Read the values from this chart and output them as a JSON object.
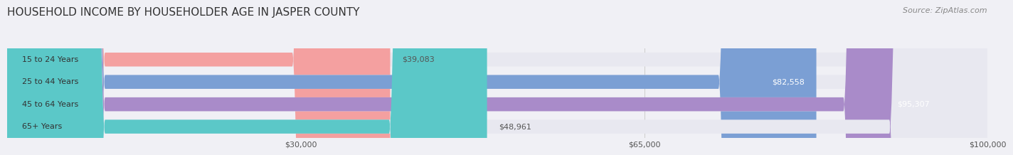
{
  "title": "HOUSEHOLD INCOME BY HOUSEHOLDER AGE IN JASPER COUNTY",
  "source": "Source: ZipAtlas.com",
  "categories": [
    "15 to 24 Years",
    "25 to 44 Years",
    "45 to 64 Years",
    "65+ Years"
  ],
  "values": [
    39083,
    82558,
    95307,
    48961
  ],
  "bar_colors": [
    "#f4a0a0",
    "#7b9fd4",
    "#a98bc9",
    "#5bc8c8"
  ],
  "label_colors": [
    "#555555",
    "#ffffff",
    "#ffffff",
    "#555555"
  ],
  "x_max": 100000,
  "x_ticks": [
    30000,
    65000,
    100000
  ],
  "x_tick_labels": [
    "$30,000",
    "$65,000",
    "$100,000"
  ],
  "background_color": "#f0f0f5",
  "bar_background": "#e8e8f0",
  "bar_height": 0.62,
  "title_fontsize": 11,
  "source_fontsize": 8,
  "label_fontsize": 8,
  "cat_fontsize": 8
}
